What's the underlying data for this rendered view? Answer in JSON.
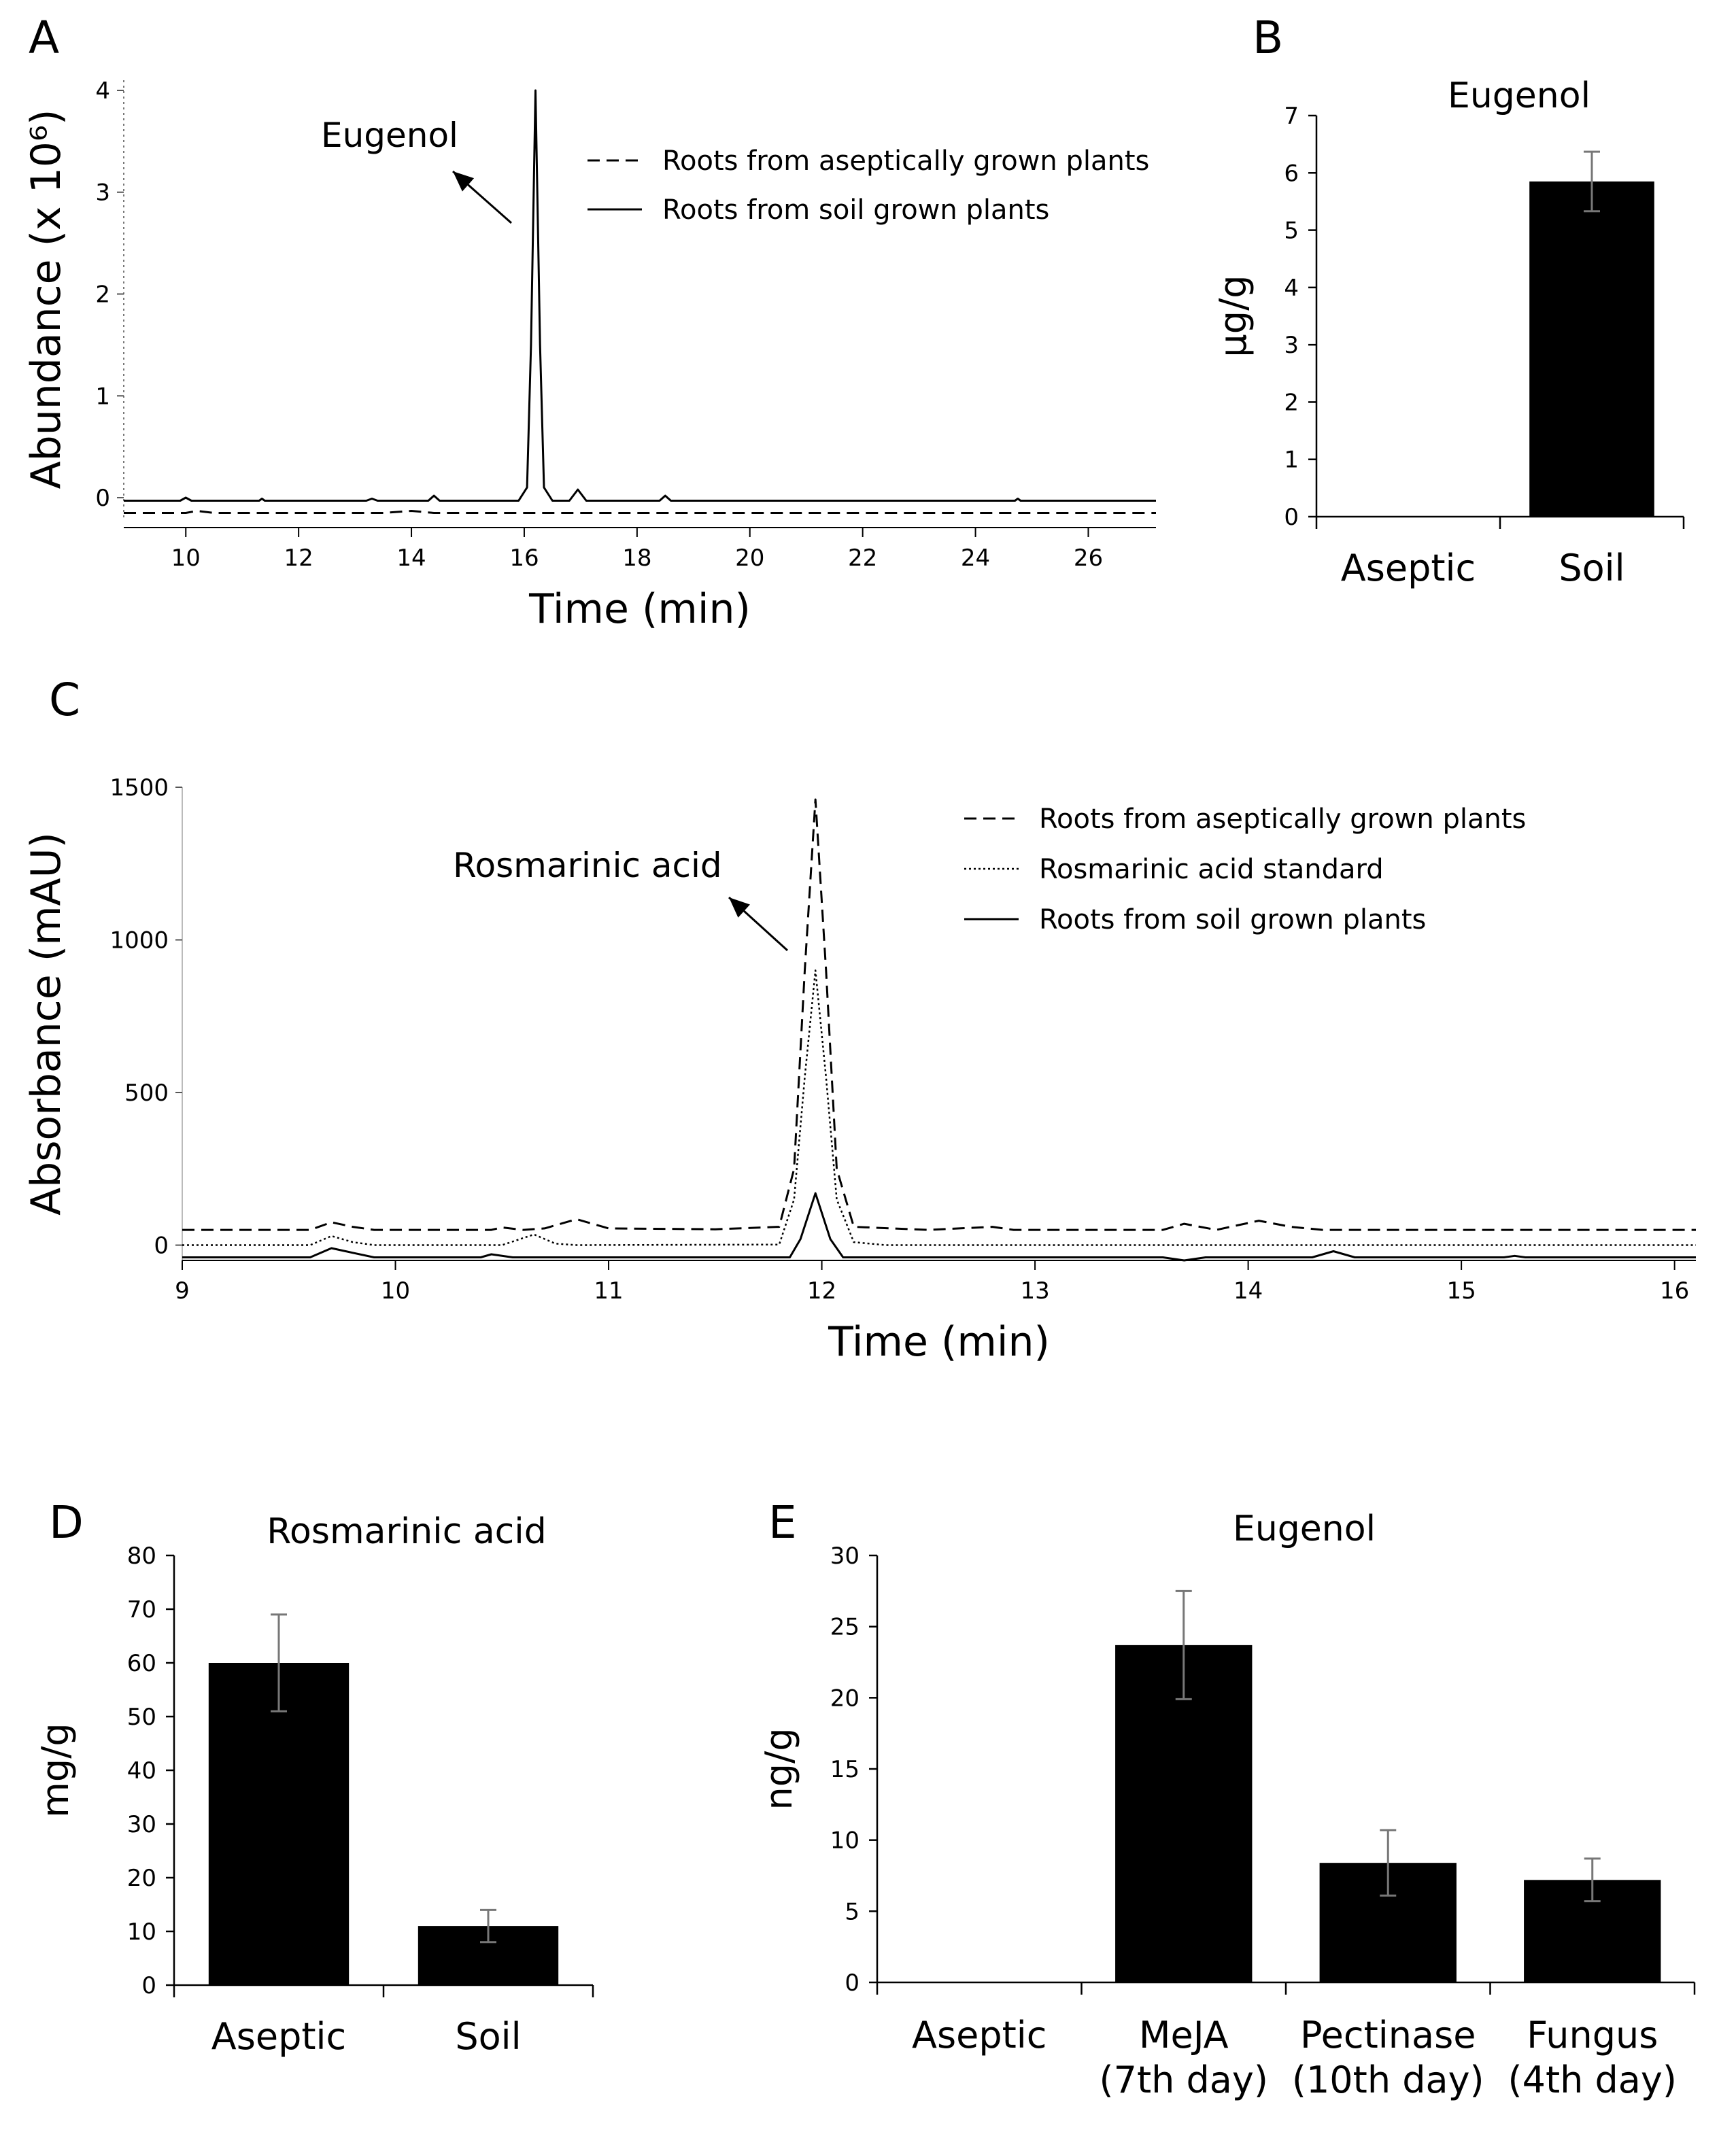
{
  "figure": {
    "panels": {
      "A": {
        "letter": "A"
      },
      "B": {
        "letter": "B"
      },
      "C": {
        "letter": "C"
      },
      "D": {
        "letter": "D"
      },
      "E": {
        "letter": "E"
      }
    }
  },
  "chart_data": [
    {
      "panel": "A",
      "type": "line",
      "xlabel": "Time (min)",
      "ylabel": "Abundance (x 10⁶)",
      "xlim": [
        8.9,
        27.2
      ],
      "ylim": [
        -0.2,
        4.1
      ],
      "x_ticks": [
        10,
        12,
        14,
        16,
        18,
        20,
        22,
        24,
        26
      ],
      "y_ticks": [
        0,
        1,
        2,
        3,
        4
      ],
      "annotation": "Eugenol",
      "legend_position": "top-right",
      "series": [
        {
          "name": "Roots from aseptically grown plants",
          "style": "dashed",
          "points": [
            [
              8.9,
              -0.15
            ],
            [
              10.0,
              -0.15
            ],
            [
              10.2,
              -0.13
            ],
            [
              10.5,
              -0.15
            ],
            [
              13.5,
              -0.15
            ],
            [
              14.0,
              -0.13
            ],
            [
              14.4,
              -0.15
            ],
            [
              27.2,
              -0.15
            ]
          ]
        },
        {
          "name": "Roots from soil grown plants",
          "style": "solid",
          "points": [
            [
              8.9,
              -0.03
            ],
            [
              9.9,
              -0.03
            ],
            [
              10.0,
              0.0
            ],
            [
              10.1,
              -0.03
            ],
            [
              11.3,
              -0.03
            ],
            [
              11.35,
              -0.01
            ],
            [
              11.4,
              -0.03
            ],
            [
              13.2,
              -0.03
            ],
            [
              13.3,
              -0.01
            ],
            [
              13.4,
              -0.03
            ],
            [
              14.3,
              -0.03
            ],
            [
              14.4,
              0.02
            ],
            [
              14.5,
              -0.03
            ],
            [
              15.9,
              -0.03
            ],
            [
              16.05,
              0.1
            ],
            [
              16.12,
              1.5
            ],
            [
              16.2,
              4.0
            ],
            [
              16.28,
              1.5
            ],
            [
              16.35,
              0.1
            ],
            [
              16.5,
              -0.03
            ],
            [
              16.8,
              -0.03
            ],
            [
              16.95,
              0.08
            ],
            [
              17.1,
              -0.03
            ],
            [
              18.4,
              -0.03
            ],
            [
              18.5,
              0.02
            ],
            [
              18.6,
              -0.03
            ],
            [
              24.7,
              -0.03
            ],
            [
              24.75,
              -0.01
            ],
            [
              24.8,
              -0.03
            ],
            [
              27.2,
              -0.03
            ]
          ]
        }
      ]
    },
    {
      "panel": "B",
      "type": "bar",
      "title": "Eugenol",
      "ylabel": "µg/g",
      "categories": [
        "Aseptic",
        "Soil"
      ],
      "values": [
        0,
        5.85
      ],
      "errors": [
        0,
        0.52
      ],
      "ylim": [
        0,
        7
      ],
      "y_ticks": [
        0,
        1,
        2,
        3,
        4,
        5,
        6,
        7
      ]
    },
    {
      "panel": "C",
      "type": "line",
      "xlabel": "Time (min)",
      "ylabel": "Absorbance (mAU)",
      "xlim": [
        9,
        16.1
      ],
      "ylim": [
        -50,
        1500
      ],
      "x_ticks": [
        9,
        10,
        11,
        12,
        13,
        14,
        15,
        16
      ],
      "y_ticks": [
        0,
        500,
        1000,
        1500
      ],
      "annotation": "Rosmarinic acid",
      "legend_position": "top-right",
      "series": [
        {
          "name": "Roots from aseptically grown plants",
          "style": "dashed",
          "points": [
            [
              9.0,
              50
            ],
            [
              9.6,
              50
            ],
            [
              9.7,
              75
            ],
            [
              9.8,
              60
            ],
            [
              9.9,
              50
            ],
            [
              10.45,
              50
            ],
            [
              10.5,
              58
            ],
            [
              10.6,
              50
            ],
            [
              10.7,
              55
            ],
            [
              10.85,
              85
            ],
            [
              11.0,
              55
            ],
            [
              11.5,
              52
            ],
            [
              11.8,
              60
            ],
            [
              11.87,
              250
            ],
            [
              11.92,
              900
            ],
            [
              11.97,
              1460
            ],
            [
              12.02,
              900
            ],
            [
              12.07,
              250
            ],
            [
              12.15,
              60
            ],
            [
              12.5,
              50
            ],
            [
              12.8,
              60
            ],
            [
              12.9,
              50
            ],
            [
              13.6,
              50
            ],
            [
              13.7,
              70
            ],
            [
              13.85,
              50
            ],
            [
              14.05,
              80
            ],
            [
              14.2,
              60
            ],
            [
              14.35,
              50
            ],
            [
              16.1,
              50
            ]
          ]
        },
        {
          "name": "Rosmarinic acid standard",
          "style": "dotted",
          "points": [
            [
              9.0,
              0
            ],
            [
              9.6,
              0
            ],
            [
              9.7,
              30
            ],
            [
              9.8,
              10
            ],
            [
              9.9,
              0
            ],
            [
              10.5,
              0
            ],
            [
              10.65,
              35
            ],
            [
              10.75,
              5
            ],
            [
              10.85,
              0
            ],
            [
              11.8,
              2
            ],
            [
              11.87,
              150
            ],
            [
              11.92,
              550
            ],
            [
              11.97,
              900
            ],
            [
              12.02,
              550
            ],
            [
              12.07,
              150
            ],
            [
              12.15,
              10
            ],
            [
              12.3,
              0
            ],
            [
              16.1,
              0
            ]
          ]
        },
        {
          "name": "Roots from soil grown plants",
          "style": "solid",
          "points": [
            [
              9.0,
              -40
            ],
            [
              9.6,
              -40
            ],
            [
              9.7,
              -10
            ],
            [
              9.8,
              -25
            ],
            [
              9.9,
              -40
            ],
            [
              10.4,
              -40
            ],
            [
              10.45,
              -30
            ],
            [
              10.55,
              -40
            ],
            [
              11.85,
              -40
            ],
            [
              11.9,
              20
            ],
            [
              11.97,
              170
            ],
            [
              12.04,
              20
            ],
            [
              12.1,
              -40
            ],
            [
              13.6,
              -40
            ],
            [
              13.7,
              -50
            ],
            [
              13.8,
              -40
            ],
            [
              14.3,
              -40
            ],
            [
              14.4,
              -20
            ],
            [
              14.5,
              -40
            ],
            [
              15.2,
              -40
            ],
            [
              15.25,
              -35
            ],
            [
              15.3,
              -40
            ],
            [
              16.1,
              -40
            ]
          ]
        }
      ]
    },
    {
      "panel": "D",
      "type": "bar",
      "title": "Rosmarinic acid",
      "ylabel": "mg/g",
      "categories": [
        "Aseptic",
        "Soil"
      ],
      "values": [
        60,
        11
      ],
      "errors": [
        9,
        3
      ],
      "ylim": [
        0,
        80
      ],
      "y_ticks": [
        0,
        10,
        20,
        30,
        40,
        50,
        60,
        70,
        80
      ]
    },
    {
      "panel": "E",
      "type": "bar",
      "title": "Eugenol",
      "ylabel": "ng/g",
      "categories": [
        "Aseptic",
        "MeJA (7th day)",
        "Pectinase (10th day)",
        "Fungus (4th day)"
      ],
      "category_lines": [
        [
          "Aseptic"
        ],
        [
          "MeJA",
          "(7th day)"
        ],
        [
          "Pectinase",
          "(10th day)"
        ],
        [
          "Fungus",
          "(4th day)"
        ]
      ],
      "values": [
        0,
        23.7,
        8.4,
        7.2
      ],
      "errors": [
        0,
        3.8,
        2.3,
        1.5
      ],
      "ylim": [
        0,
        30
      ],
      "y_ticks": [
        0,
        5,
        10,
        15,
        20,
        25,
        30
      ]
    }
  ]
}
